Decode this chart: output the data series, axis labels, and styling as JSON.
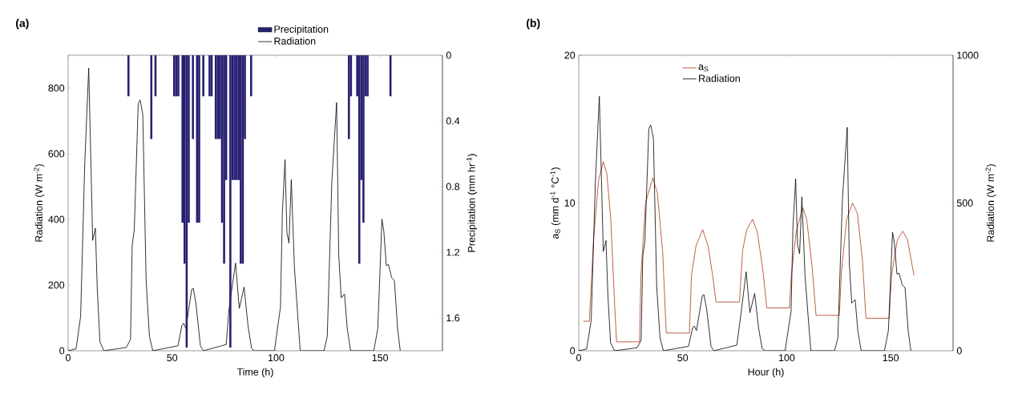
{
  "chart_data": [
    {
      "type": "line",
      "title": "(a)",
      "xlabel": "Time (h)",
      "ylabel": "Radiation (W m$^{-2}$)",
      "y2label": "Precipitation (mm hr$^{-1}$)",
      "xlim": [
        0,
        180
      ],
      "xticks": [
        0,
        50,
        100,
        150
      ],
      "ylim": [
        0,
        900
      ],
      "yticks": [
        0,
        200,
        400,
        600,
        800
      ],
      "y2lim": [
        1.8,
        0
      ],
      "y2ticks": [
        0,
        0.4,
        0.8,
        1.2,
        1.6
      ],
      "legend": "top right",
      "series": [
        {
          "name": "Precipitation",
          "type": "bar",
          "axis": "y2",
          "color": "#262070",
          "x": [
            29,
            40,
            42,
            51,
            52,
            53,
            55,
            56,
            57,
            58,
            60,
            62,
            63,
            65,
            68,
            69,
            71,
            72,
            73,
            74,
            75,
            76,
            78,
            79,
            80,
            81,
            82,
            83,
            84,
            85,
            88,
            135,
            136,
            139,
            140,
            141,
            142,
            143,
            144,
            155
          ],
          "values": [
            0.25,
            0.51,
            0.25,
            0.25,
            0.25,
            0.25,
            1.02,
            1.27,
            1.78,
            1.02,
            0.51,
            1.02,
            1.02,
            0.25,
            0.25,
            0.25,
            0.51,
            0.51,
            0.51,
            1.02,
            1.27,
            0.76,
            1.78,
            0.76,
            0.76,
            0.76,
            0.76,
            1.27,
            1.27,
            0.51,
            0.25,
            0.51,
            0.25,
            0.25,
            1.27,
            0.76,
            1.02,
            0.25,
            0.25,
            0.25
          ]
        },
        {
          "name": "Radiation",
          "color": "#000000",
          "x": [
            0,
            3.8,
            6,
            8,
            9.9,
            11.8,
            13.1,
            14,
            15.3,
            17.2,
            28,
            30,
            30.8,
            31.8,
            33.7,
            34.6,
            35.9,
            37.5,
            39.1,
            40.7,
            52.8,
            54.7,
            55.6,
            56.6,
            59.4,
            60.2,
            61.5,
            63.6,
            65,
            76,
            77.3,
            80.5,
            82.3,
            84.6,
            86.5,
            88.2,
            89.5,
            99.2,
            102.1,
            103,
            104.3,
            105.2,
            106.2,
            107.3,
            108.8,
            110.3,
            111.6,
            123,
            124.6,
            126.8,
            129.1,
            130.1,
            131.3,
            132.9,
            134.2,
            135.8,
            147,
            148.9,
            150.9,
            151.8,
            153,
            154,
            155.6,
            156.9,
            158.4,
            159.7
          ],
          "values": [
            0,
            6,
            104,
            572,
            861,
            336,
            373,
            190,
            27,
            0,
            10,
            35,
            320,
            369,
            752,
            764,
            719,
            214,
            43,
            0,
            15,
            76,
            84,
            68,
            186,
            190,
            141,
            15,
            0,
            19,
            125,
            267,
            129,
            194,
            76,
            7,
            0,
            0,
            133,
            418,
            582,
            360,
            328,
            521,
            255,
            116,
            0,
            0,
            43,
            515,
            756,
            296,
            161,
            173,
            68,
            0,
            0,
            68,
            401,
            364,
            259,
            263,
            222,
            214,
            68,
            0
          ]
        }
      ]
    },
    {
      "type": "line",
      "title": "(b)",
      "xlabel": "Hour (h)",
      "ylabel": "a$_{S}$  (mm  d$^{-1}$ °C$^{-1}$)",
      "y2label": "Radiation (W m$^{-2}$)",
      "xlim": [
        0,
        180
      ],
      "xticks": [
        0,
        50,
        100,
        150
      ],
      "ylim": [
        0,
        20
      ],
      "yticks": [
        0,
        10,
        20
      ],
      "y2lim": [
        0,
        1000
      ],
      "y2ticks": [
        0,
        500,
        1000
      ],
      "legend": "top",
      "series": [
        {
          "name": "a$_{S}$",
          "color": "#b03a1a",
          "x": [
            2.2,
            5.1,
            7.1,
            9.5,
            11.8,
            13.5,
            15.4,
            17.3,
            18.2,
            29.2,
            29.9,
            32.1,
            35.6,
            37.8,
            40.4,
            41.5,
            42.1,
            53.2,
            54.2,
            56.4,
            59.6,
            62.2,
            64.7,
            66,
            77.3,
            78.8,
            80.8,
            83.6,
            85.9,
            88.5,
            90.4,
            101.3,
            102.2,
            104.5,
            107.7,
            109.6,
            112.2,
            114.1,
            125.3,
            126.3,
            128.8,
            131.7,
            134,
            136.5,
            138.1,
            149.3,
            150.4,
            153.2,
            155.8,
            158.1,
            161.2
          ],
          "values": [
            2.0,
            2.0,
            7.5,
            11.5,
            12.8,
            12.0,
            8.9,
            3.0,
            0.6,
            0.6,
            5.1,
            10.0,
            11.7,
            10.7,
            6.6,
            3.0,
            1.2,
            1.2,
            5.1,
            7.1,
            8.2,
            7.1,
            4.8,
            3.3,
            3.3,
            6.8,
            8.2,
            8.9,
            8.0,
            5.5,
            2.9,
            2.9,
            5.1,
            8.0,
            9.7,
            8.9,
            5.7,
            2.4,
            2.4,
            5.3,
            8.9,
            10.0,
            9.3,
            6.0,
            2.2,
            2.2,
            5.1,
            7.5,
            8.1,
            7.5,
            5.1
          ]
        },
        {
          "name": "Radiation",
          "axis": "y2",
          "color": "#000000",
          "x": [
            0,
            3.8,
            6,
            8,
            9.9,
            11.8,
            13.1,
            14,
            15.3,
            17.2,
            28,
            30,
            30.8,
            31.8,
            33.7,
            34.6,
            35.9,
            37.5,
            39.1,
            40.7,
            52.8,
            54.7,
            55.6,
            56.6,
            59.4,
            60.2,
            61.5,
            63.6,
            65,
            76,
            78,
            80.5,
            82.3,
            84.6,
            86.5,
            88.2,
            89.5,
            99.2,
            102.1,
            103,
            104.3,
            105.2,
            106.2,
            107.3,
            108.8,
            110.3,
            111.6,
            123,
            124.6,
            126.8,
            129.1,
            130.1,
            131.3,
            132.9,
            134.2,
            135.8,
            147,
            148.9,
            150.9,
            151.8,
            153,
            154,
            155.6,
            156.9,
            158.4,
            159.7
          ],
          "values": [
            0,
            6,
            104,
            572,
            861,
            336,
            373,
            190,
            27,
            0,
            10,
            35,
            320,
            369,
            752,
            764,
            719,
            214,
            43,
            0,
            15,
            76,
            84,
            68,
            186,
            190,
            141,
            15,
            0,
            19,
            125,
            267,
            129,
            194,
            76,
            7,
            0,
            0,
            133,
            418,
            582,
            360,
            328,
            521,
            255,
            116,
            0,
            0,
            43,
            515,
            756,
            296,
            161,
            173,
            68,
            0,
            0,
            68,
            401,
            364,
            259,
            263,
            222,
            214,
            68,
            0
          ]
        }
      ]
    }
  ]
}
